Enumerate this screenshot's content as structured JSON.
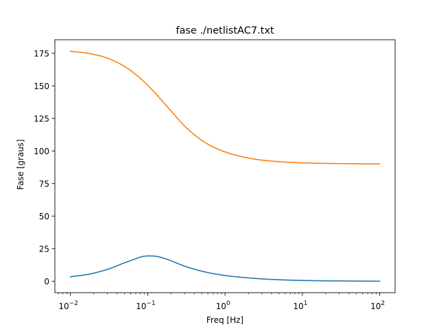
{
  "chart_data": {
    "type": "line",
    "title": "fase ./netlistAC7.txt",
    "xlabel": "Freq [Hz]",
    "ylabel": "Fase [graus]",
    "x_scale": "log",
    "xlim": [
      0.0063,
      158
    ],
    "ylim": [
      -8.8,
      185.4
    ],
    "x_ticks": [
      {
        "value": 0.01,
        "base": "10",
        "exp": "−2"
      },
      {
        "value": 0.1,
        "base": "10",
        "exp": "−1"
      },
      {
        "value": 1,
        "base": "10",
        "exp": "0"
      },
      {
        "value": 10,
        "base": "10",
        "exp": "1"
      },
      {
        "value": 100,
        "base": "10",
        "exp": "2"
      }
    ],
    "y_ticks": [
      {
        "value": 0,
        "label": "0"
      },
      {
        "value": 25,
        "label": "25"
      },
      {
        "value": 50,
        "label": "50"
      },
      {
        "value": 75,
        "label": "75"
      },
      {
        "value": 100,
        "label": "100"
      },
      {
        "value": 125,
        "label": "125"
      },
      {
        "value": 150,
        "label": "150"
      },
      {
        "value": 175,
        "label": "175"
      }
    ],
    "grid": false,
    "legend": "none",
    "series": [
      {
        "color": "#1f77b4",
        "x": [
          0.01,
          0.0178,
          0.0316,
          0.0562,
          0.1,
          0.1259,
          0.1778,
          0.3162,
          0.5623,
          1.0,
          1.7783,
          3.1623,
          5.6234,
          10,
          17.78,
          31.62,
          56.23,
          100
        ],
        "y": [
          3.4,
          5.5,
          9.5,
          15.2,
          19.4,
          19.2,
          16.8,
          11.1,
          7.0,
          4.4,
          2.8,
          1.7,
          1.0,
          0.6,
          0.3,
          0.2,
          0.1,
          0.0
        ]
      },
      {
        "color": "#ff7f0e",
        "x": [
          0.01,
          0.0178,
          0.0316,
          0.0562,
          0.1,
          0.1778,
          0.3162,
          0.5623,
          1.0,
          1.7783,
          3.1623,
          5.6234,
          10,
          17.78,
          31.62,
          56.23,
          100
        ],
        "y": [
          176.5,
          174.8,
          170.8,
          163.0,
          150.5,
          134.2,
          117.8,
          106.2,
          99.3,
          95.2,
          92.8,
          91.6,
          90.9,
          90.5,
          90.3,
          90.15,
          90.1
        ]
      }
    ]
  }
}
